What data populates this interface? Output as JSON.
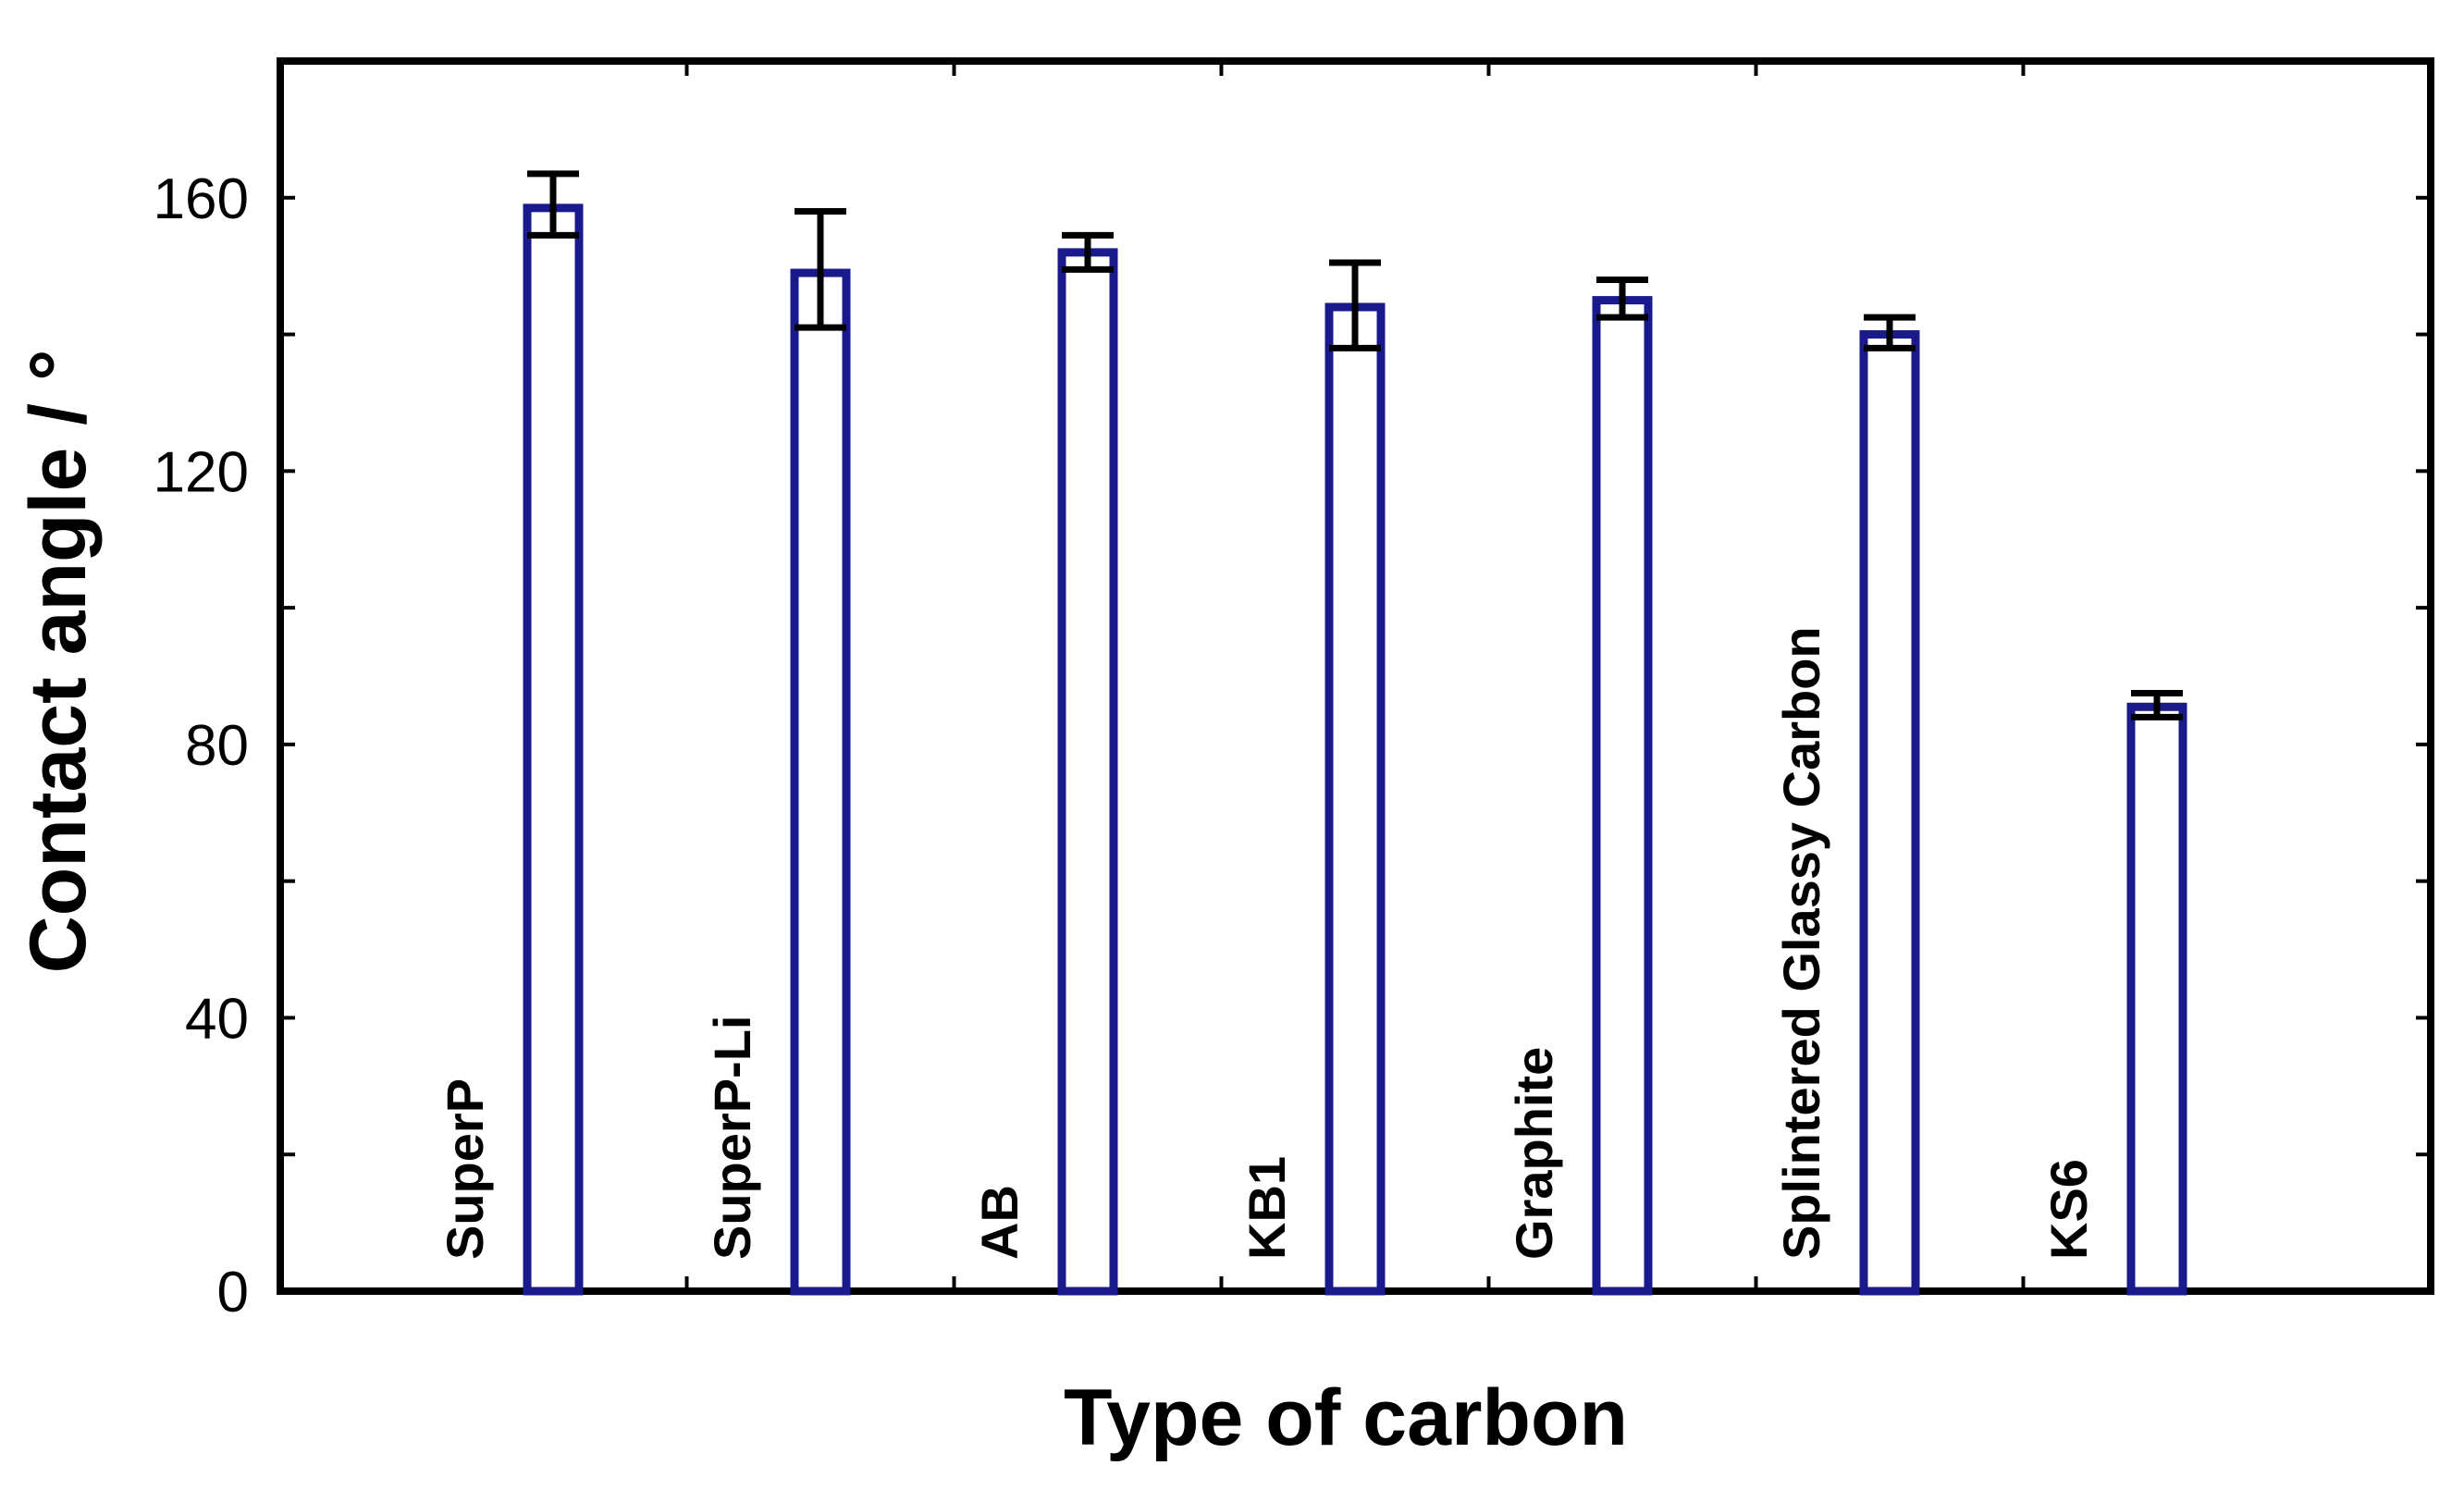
{
  "chart_data": {
    "type": "bar",
    "xlabel": "Type of carbon",
    "ylabel": "Contact angle / °",
    "ylim": [
      0,
      180
    ],
    "yticks": [
      0,
      40,
      80,
      120,
      160
    ],
    "grid": false,
    "categories": [
      "SuperP",
      "SuperP-Li",
      "AB",
      "KB1",
      "Graphite",
      "Splintered Glassy Carbon",
      "KS6"
    ],
    "values": [
      158.5,
      149,
      152,
      144,
      145,
      140,
      85.5
    ],
    "error_low": [
      154.5,
      141,
      149.5,
      138,
      142.5,
      138,
      84
    ],
    "error_high": [
      163.5,
      158,
      154.5,
      150.5,
      148,
      142.5,
      87.5
    ],
    "colors": {
      "bar_edge": "#1a1a8c",
      "error_bar": "#000000",
      "axis": "#000000"
    }
  }
}
